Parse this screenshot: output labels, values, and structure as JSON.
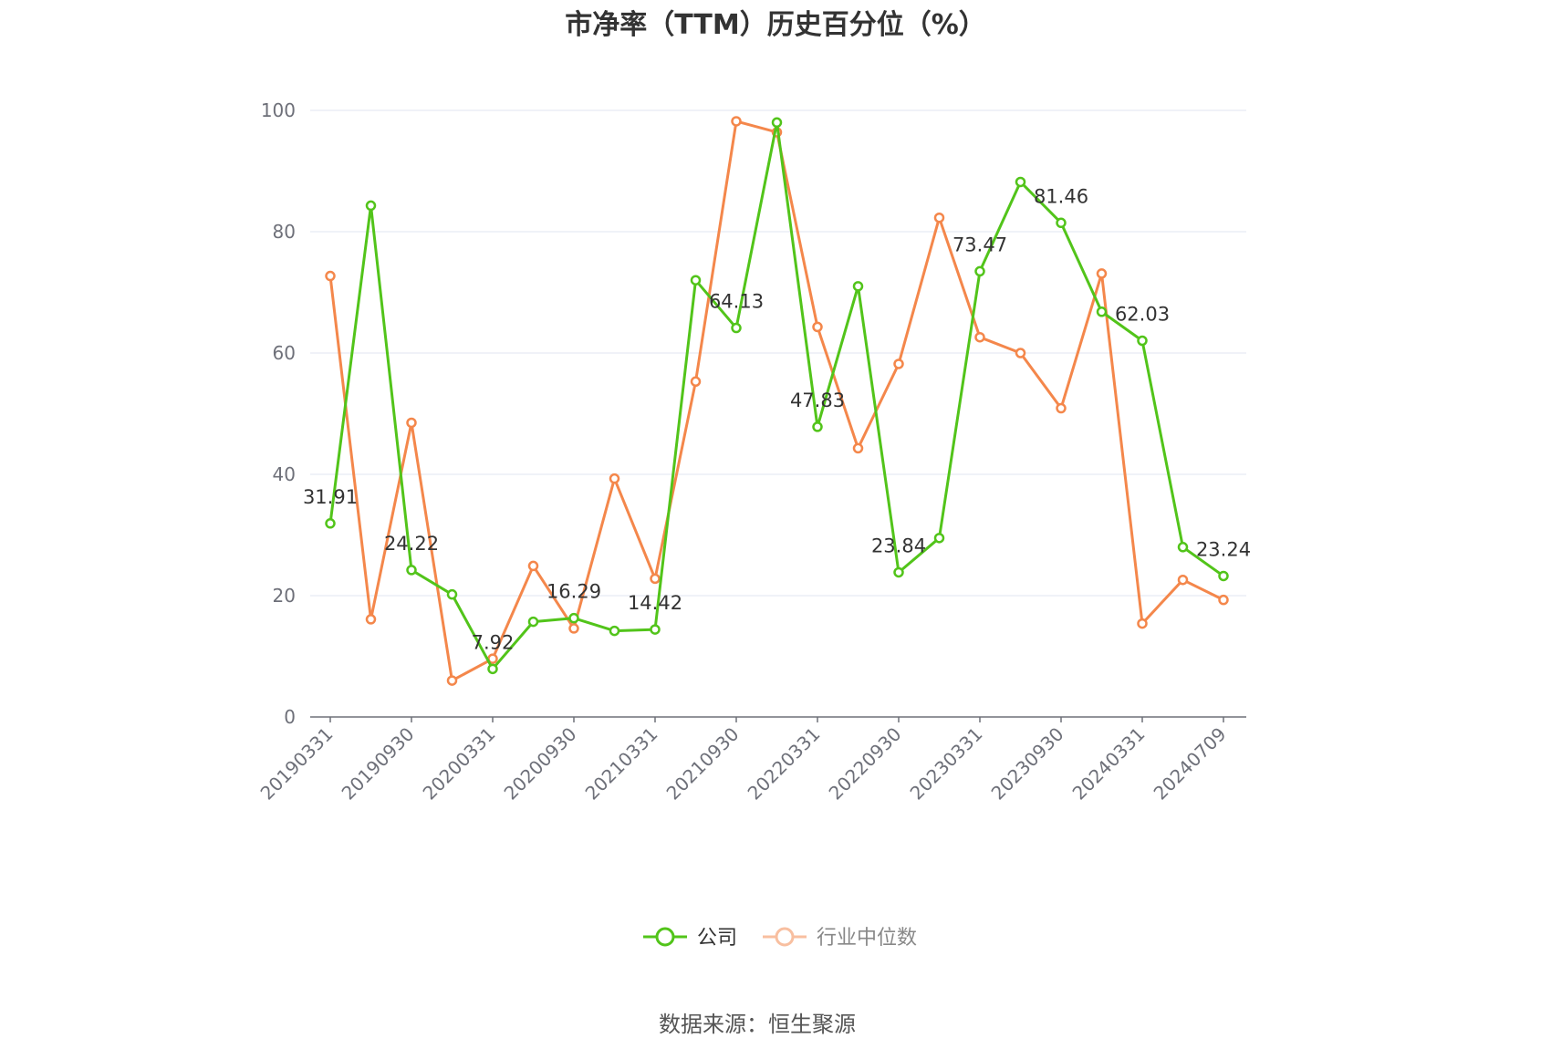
{
  "chart_data": {
    "type": "line",
    "title": "市净率（TTM）历史百分位（%）",
    "ylim": [
      0,
      100
    ],
    "yticks": [
      0,
      20,
      40,
      60,
      80,
      100
    ],
    "grid": true,
    "legend_position": "bottom",
    "x": [
      "20190331",
      "20190630",
      "20190930",
      "20191231",
      "20200331",
      "20200630",
      "20200930",
      "20201231",
      "20210331",
      "20210630",
      "20210930",
      "20211231",
      "20220331",
      "20220630",
      "20220930",
      "20221231",
      "20230331",
      "20230630",
      "20230930",
      "20231231",
      "20240331",
      "20240630",
      "20240709"
    ],
    "xtick_labels": [
      "20190331",
      "20190930",
      "20200331",
      "20200930",
      "20210331",
      "20210930",
      "20220331",
      "20220930",
      "20230331",
      "20230930",
      "20240331",
      "20240709"
    ],
    "series": [
      {
        "name": "公司",
        "color": "#52c41a",
        "values": [
          31.91,
          84.3,
          24.22,
          20.2,
          7.92,
          15.7,
          16.29,
          14.2,
          14.42,
          72.0,
          64.13,
          98.0,
          47.83,
          71.0,
          23.84,
          29.5,
          73.47,
          88.2,
          81.46,
          66.8,
          62.03,
          28.0,
          23.24
        ],
        "labels": {
          "0": "31.91",
          "2": "24.22",
          "4": "7.92",
          "6": "16.29",
          "8": "14.42",
          "10": "64.13",
          "12": "47.83",
          "14": "23.84",
          "16": "73.47",
          "18": "81.46",
          "20": "62.03",
          "22": "23.24"
        }
      },
      {
        "name": "行业中位数",
        "color": "#f4874b",
        "values": [
          72.7,
          16.1,
          48.5,
          6.0,
          9.6,
          24.9,
          14.6,
          39.3,
          22.8,
          55.3,
          98.2,
          96.4,
          64.3,
          44.3,
          58.2,
          82.3,
          62.6,
          60.0,
          50.9,
          73.1,
          15.4,
          22.6,
          19.3
        ]
      }
    ]
  },
  "legend": {
    "company": "公司",
    "industry": "行业中位数"
  },
  "source": "数据来源：恒生聚源"
}
